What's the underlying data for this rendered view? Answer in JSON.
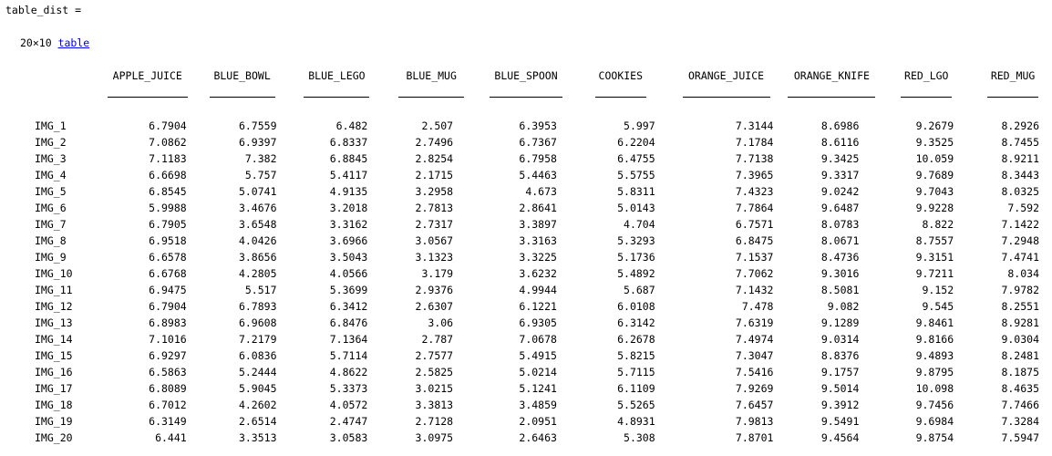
{
  "header": {
    "variable_line": "table_dist ="
  },
  "summary": {
    "size": "20×10",
    "type_link": "table"
  },
  "table": {
    "columns": [
      "APPLE_JUICE",
      "BLUE_BOWL",
      "BLUE_LEGO",
      "BLUE_MUG",
      "BLUE_SPOON",
      "COOKIES",
      "ORANGE_JUICE",
      "ORANGE_KNIFE",
      "RED_LGO",
      "RED_MUG"
    ],
    "rows": [
      {
        "name": "IMG_1",
        "values": [
          "6.7904",
          "6.7559",
          "6.482",
          "2.507",
          "6.3953",
          "5.997",
          "7.3144",
          "8.6986",
          "9.2679",
          "8.2926"
        ]
      },
      {
        "name": "IMG_2",
        "values": [
          "7.0862",
          "6.9397",
          "6.8337",
          "2.7496",
          "6.7367",
          "6.2204",
          "7.1784",
          "8.6116",
          "9.3525",
          "8.7455"
        ]
      },
      {
        "name": "IMG_3",
        "values": [
          "7.1183",
          "7.382",
          "6.8845",
          "2.8254",
          "6.7958",
          "6.4755",
          "7.7138",
          "9.3425",
          "10.059",
          "8.9211"
        ]
      },
      {
        "name": "IMG_4",
        "values": [
          "6.6698",
          "5.757",
          "5.4117",
          "2.1715",
          "5.4463",
          "5.5755",
          "7.3965",
          "9.3317",
          "9.7689",
          "8.3443"
        ]
      },
      {
        "name": "IMG_5",
        "values": [
          "6.8545",
          "5.0741",
          "4.9135",
          "3.2958",
          "4.673",
          "5.8311",
          "7.4323",
          "9.0242",
          "9.7043",
          "8.0325"
        ]
      },
      {
        "name": "IMG_6",
        "values": [
          "5.9988",
          "3.4676",
          "3.2018",
          "2.7813",
          "2.8641",
          "5.0143",
          "7.7864",
          "9.6487",
          "9.9228",
          "7.592"
        ]
      },
      {
        "name": "IMG_7",
        "values": [
          "6.7905",
          "3.6548",
          "3.3162",
          "2.7317",
          "3.3897",
          "4.704",
          "6.7571",
          "8.0783",
          "8.822",
          "7.1422"
        ]
      },
      {
        "name": "IMG_8",
        "values": [
          "6.9518",
          "4.0426",
          "3.6966",
          "3.0567",
          "3.3163",
          "5.3293",
          "6.8475",
          "8.0671",
          "8.7557",
          "7.2948"
        ]
      },
      {
        "name": "IMG_9",
        "values": [
          "6.6578",
          "3.8656",
          "3.5043",
          "3.1323",
          "3.3225",
          "5.1736",
          "7.1537",
          "8.4736",
          "9.3151",
          "7.4741"
        ]
      },
      {
        "name": "IMG_10",
        "values": [
          "6.6768",
          "4.2805",
          "4.0566",
          "3.179",
          "3.6232",
          "5.4892",
          "7.7062",
          "9.3016",
          "9.7211",
          "8.034"
        ]
      },
      {
        "name": "IMG_11",
        "values": [
          "6.9475",
          "5.517",
          "5.3699",
          "2.9376",
          "4.9944",
          "5.687",
          "7.1432",
          "8.5081",
          "9.152",
          "7.9782"
        ]
      },
      {
        "name": "IMG_12",
        "values": [
          "6.7904",
          "6.7893",
          "6.3412",
          "2.6307",
          "6.1221",
          "6.0108",
          "7.478",
          "9.082",
          "9.545",
          "8.2551"
        ]
      },
      {
        "name": "IMG_13",
        "values": [
          "6.8983",
          "6.9608",
          "6.8476",
          "3.06",
          "6.9305",
          "6.3142",
          "7.6319",
          "9.1289",
          "9.8461",
          "8.9281"
        ]
      },
      {
        "name": "IMG_14",
        "values": [
          "7.1016",
          "7.2179",
          "7.1364",
          "2.787",
          "7.0678",
          "6.2678",
          "7.4974",
          "9.0314",
          "9.8166",
          "9.0304"
        ]
      },
      {
        "name": "IMG_15",
        "values": [
          "6.9297",
          "6.0836",
          "5.7114",
          "2.7577",
          "5.4915",
          "5.8215",
          "7.3047",
          "8.8376",
          "9.4893",
          "8.2481"
        ]
      },
      {
        "name": "IMG_16",
        "values": [
          "6.5863",
          "5.2444",
          "4.8622",
          "2.5825",
          "5.0214",
          "5.7115",
          "7.5416",
          "9.1757",
          "9.8795",
          "8.1875"
        ]
      },
      {
        "name": "IMG_17",
        "values": [
          "6.8089",
          "5.9045",
          "5.3373",
          "3.0215",
          "5.1241",
          "6.1109",
          "7.9269",
          "9.5014",
          "10.098",
          "8.4635"
        ]
      },
      {
        "name": "IMG_18",
        "values": [
          "6.7012",
          "4.2602",
          "4.0572",
          "3.3813",
          "3.4859",
          "5.5265",
          "7.6457",
          "9.3912",
          "9.7456",
          "7.7466"
        ]
      },
      {
        "name": "IMG_19",
        "values": [
          "6.3149",
          "2.6514",
          "2.4747",
          "2.7128",
          "2.0951",
          "4.8931",
          "7.9813",
          "9.5491",
          "9.6984",
          "7.3284"
        ]
      },
      {
        "name": "IMG_20",
        "values": [
          "6.441",
          "3.3513",
          "3.0583",
          "3.0975",
          "2.6463",
          "5.308",
          "7.8701",
          "9.4564",
          "9.8754",
          "7.5947"
        ]
      }
    ]
  }
}
